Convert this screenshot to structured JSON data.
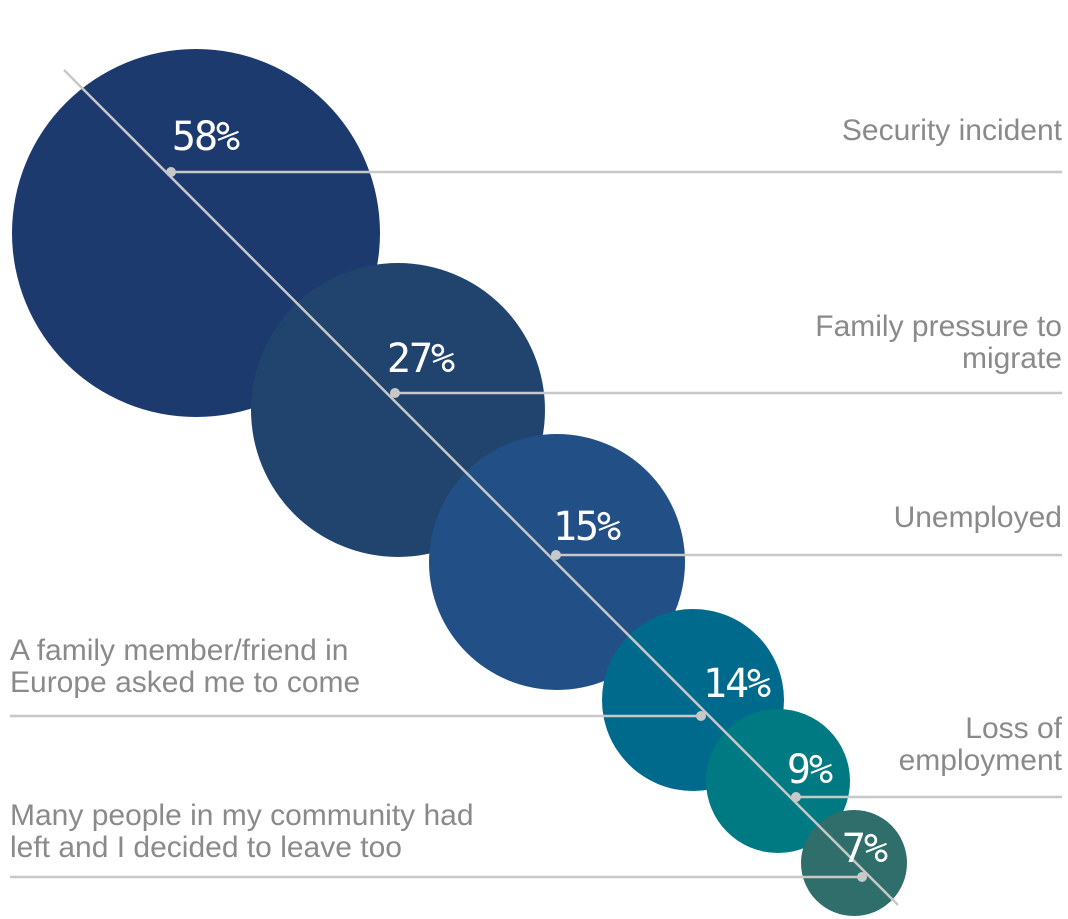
{
  "chart_data": {
    "type": "bubble",
    "unit": "%",
    "items": [
      {
        "label": "Security incident",
        "value": 58,
        "value_label": "58%",
        "color": "#1c3a6e"
      },
      {
        "label": "Family pressure to migrate",
        "value": 27,
        "value_label": "27%",
        "color": "#21446f"
      },
      {
        "label": "Unemployed",
        "value": 15,
        "value_label": "15%",
        "color": "#214f86"
      },
      {
        "label": "A family member/friend in Europe asked me to come",
        "value": 14,
        "value_label": "14%",
        "color": "#006a8c"
      },
      {
        "label": "Loss of employment",
        "value": 9,
        "value_label": "9%",
        "color": "#007a82"
      },
      {
        "label": "Many people in my community had left and I decided to leave too",
        "value": 7,
        "value_label": "7%",
        "color": "#2f6e6a"
      }
    ]
  }
}
